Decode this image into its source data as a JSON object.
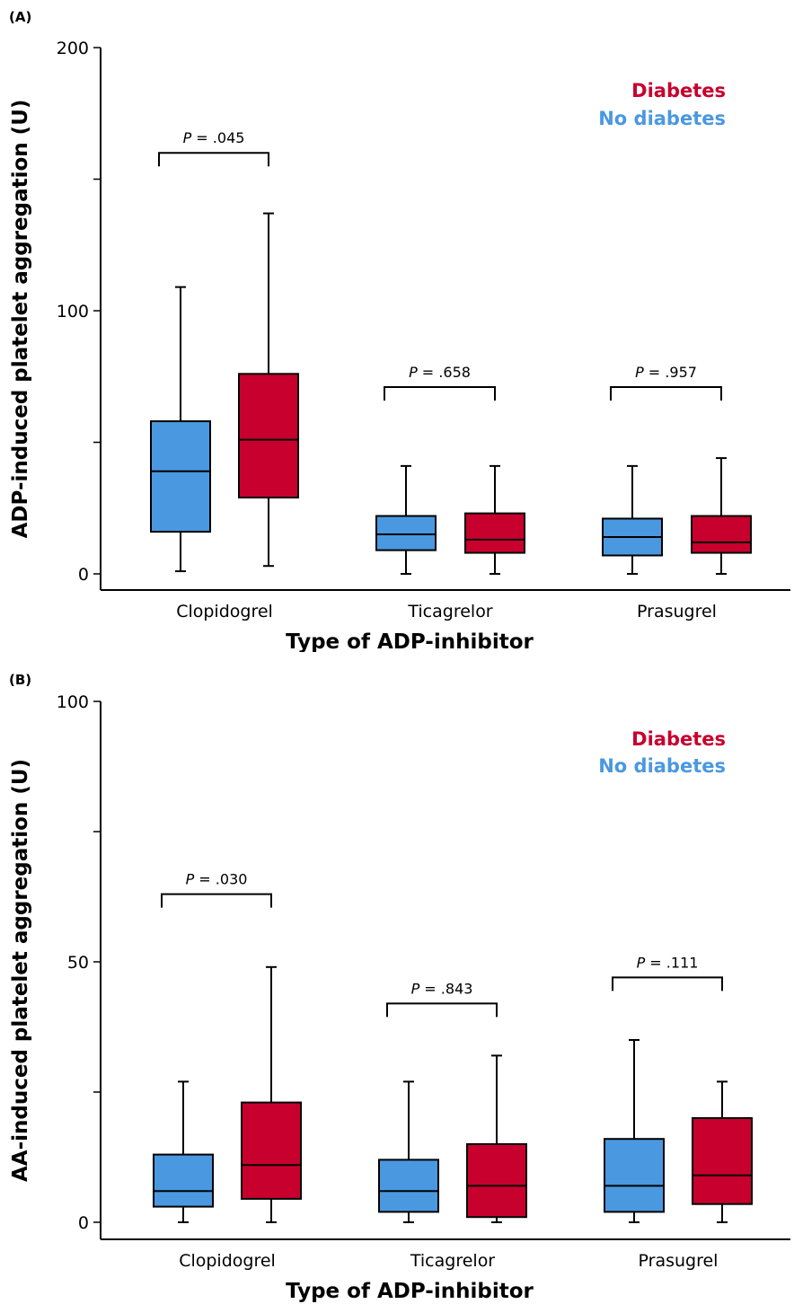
{
  "chart_data": [
    {
      "type": "box",
      "panel_label": "(A)",
      "xlabel": "Type of ADP-inhibitor",
      "ylabel": "ADP-induced platelet aggregation (U)",
      "ylim": [
        0,
        200
      ],
      "yticks_labeled": [
        0,
        100,
        200
      ],
      "yticks_minor": [
        50,
        150
      ],
      "categories": [
        "Clopidogrel",
        "Ticagrelor",
        "Prasugrel"
      ],
      "colors": {
        "No diabetes": "#4a98e0",
        "Diabetes": "#c8002e"
      },
      "legend": {
        "position": "top-right",
        "entries": [
          "Diabetes",
          "No diabetes"
        ]
      },
      "series": [
        {
          "name": "No diabetes",
          "boxes": [
            {
              "whisker_low": 1,
              "q1": 16,
              "median": 39,
              "q3": 58,
              "whisker_high": 109
            },
            {
              "whisker_low": 0,
              "q1": 9,
              "median": 15,
              "q3": 22,
              "whisker_high": 41
            },
            {
              "whisker_low": 0,
              "q1": 7,
              "median": 14,
              "q3": 21,
              "whisker_high": 41
            }
          ]
        },
        {
          "name": "Diabetes",
          "boxes": [
            {
              "whisker_low": 3,
              "q1": 29,
              "median": 51,
              "q3": 76,
              "whisker_high": 137
            },
            {
              "whisker_low": 0,
              "q1": 8,
              "median": 13,
              "q3": 23,
              "whisker_high": 41
            },
            {
              "whisker_low": 0,
              "q1": 8,
              "median": 12,
              "q3": 22,
              "whisker_high": 44
            }
          ]
        }
      ],
      "annotations": [
        {
          "p_label": "P",
          "p_value": " = .045",
          "category": 0,
          "bracket_y": 160
        },
        {
          "p_label": "P",
          "p_value": " = .658",
          "category": 1,
          "bracket_y": 71
        },
        {
          "p_label": "P",
          "p_value": " = .957",
          "category": 2,
          "bracket_y": 71
        }
      ]
    },
    {
      "type": "box",
      "panel_label": "(B)",
      "xlabel": "Type of ADP-inhibitor",
      "ylabel": "AA-induced platelet aggregation (U)",
      "ylim": [
        0,
        100
      ],
      "yticks_labeled": [
        0,
        50,
        100
      ],
      "yticks_minor": [
        25,
        75
      ],
      "categories": [
        "Clopidogrel",
        "Ticagrelor",
        "Prasugrel"
      ],
      "colors": {
        "No diabetes": "#4a98e0",
        "Diabetes": "#c8002e"
      },
      "legend": {
        "position": "top-right",
        "entries": [
          "Diabetes",
          "No diabetes"
        ]
      },
      "series": [
        {
          "name": "No diabetes",
          "boxes": [
            {
              "whisker_low": 0,
              "q1": 3,
              "median": 6,
              "q3": 13,
              "whisker_high": 27
            },
            {
              "whisker_low": 0,
              "q1": 2,
              "median": 6,
              "q3": 12,
              "whisker_high": 27
            },
            {
              "whisker_low": 0,
              "q1": 2,
              "median": 7,
              "q3": 16,
              "whisker_high": 35
            }
          ]
        },
        {
          "name": "Diabetes",
          "boxes": [
            {
              "whisker_low": 0,
              "q1": 4.5,
              "median": 11,
              "q3": 23,
              "whisker_high": 49
            },
            {
              "whisker_low": 0,
              "q1": 1,
              "median": 7,
              "q3": 15,
              "whisker_high": 32
            },
            {
              "whisker_low": 0,
              "q1": 3.5,
              "median": 9,
              "q3": 20,
              "whisker_high": 27
            }
          ]
        }
      ],
      "annotations": [
        {
          "p_label": "P",
          "p_value": " = .030",
          "category": 0,
          "bracket_y": 63
        },
        {
          "p_label": "P",
          "p_value": " = .843",
          "category": 1,
          "bracket_y": 42
        },
        {
          "p_label": "P",
          "p_value": " = .111",
          "category": 2,
          "bracket_y": 47
        }
      ]
    }
  ]
}
